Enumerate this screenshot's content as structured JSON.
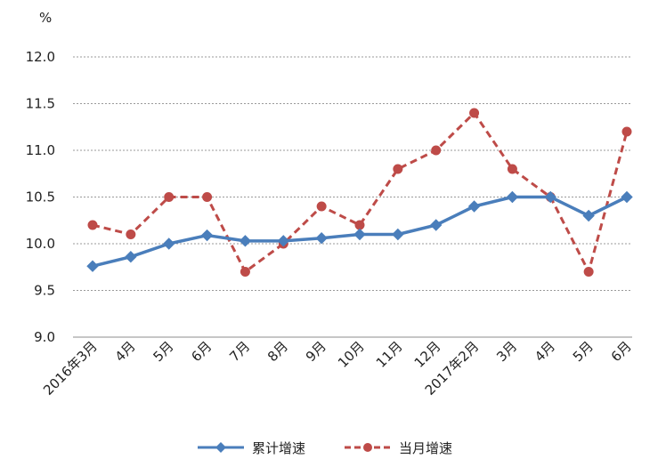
{
  "chart_data": {
    "type": "line",
    "y_unit": "%",
    "ylim": [
      9.0,
      12.0
    ],
    "y_ticks": [
      "9.0",
      "9.5",
      "10.0",
      "10.5",
      "11.0",
      "11.5",
      "12.0"
    ],
    "grid": true,
    "legend_position": "bottom",
    "categories": [
      "2016年3月",
      "4月",
      "5月",
      "6月",
      "7月",
      "8月",
      "9月",
      "10月",
      "11月",
      "12月",
      "2017年2月",
      "3月",
      "4月",
      "5月",
      "6月"
    ],
    "series": [
      {
        "name": "累计增速",
        "color": "#4a7ebb",
        "style": "solid",
        "marker": "diamond",
        "values": [
          9.76,
          9.86,
          10.0,
          10.09,
          10.03,
          10.03,
          10.06,
          10.1,
          10.1,
          10.2,
          10.4,
          10.5,
          10.5,
          10.3,
          10.5
        ]
      },
      {
        "name": "当月增速",
        "color": "#be4b48",
        "style": "dashed",
        "marker": "circle",
        "values": [
          10.2,
          10.1,
          10.5,
          10.5,
          9.7,
          10.0,
          10.4,
          10.2,
          10.8,
          11.0,
          11.4,
          10.8,
          10.5,
          9.7,
          11.2
        ]
      }
    ]
  }
}
